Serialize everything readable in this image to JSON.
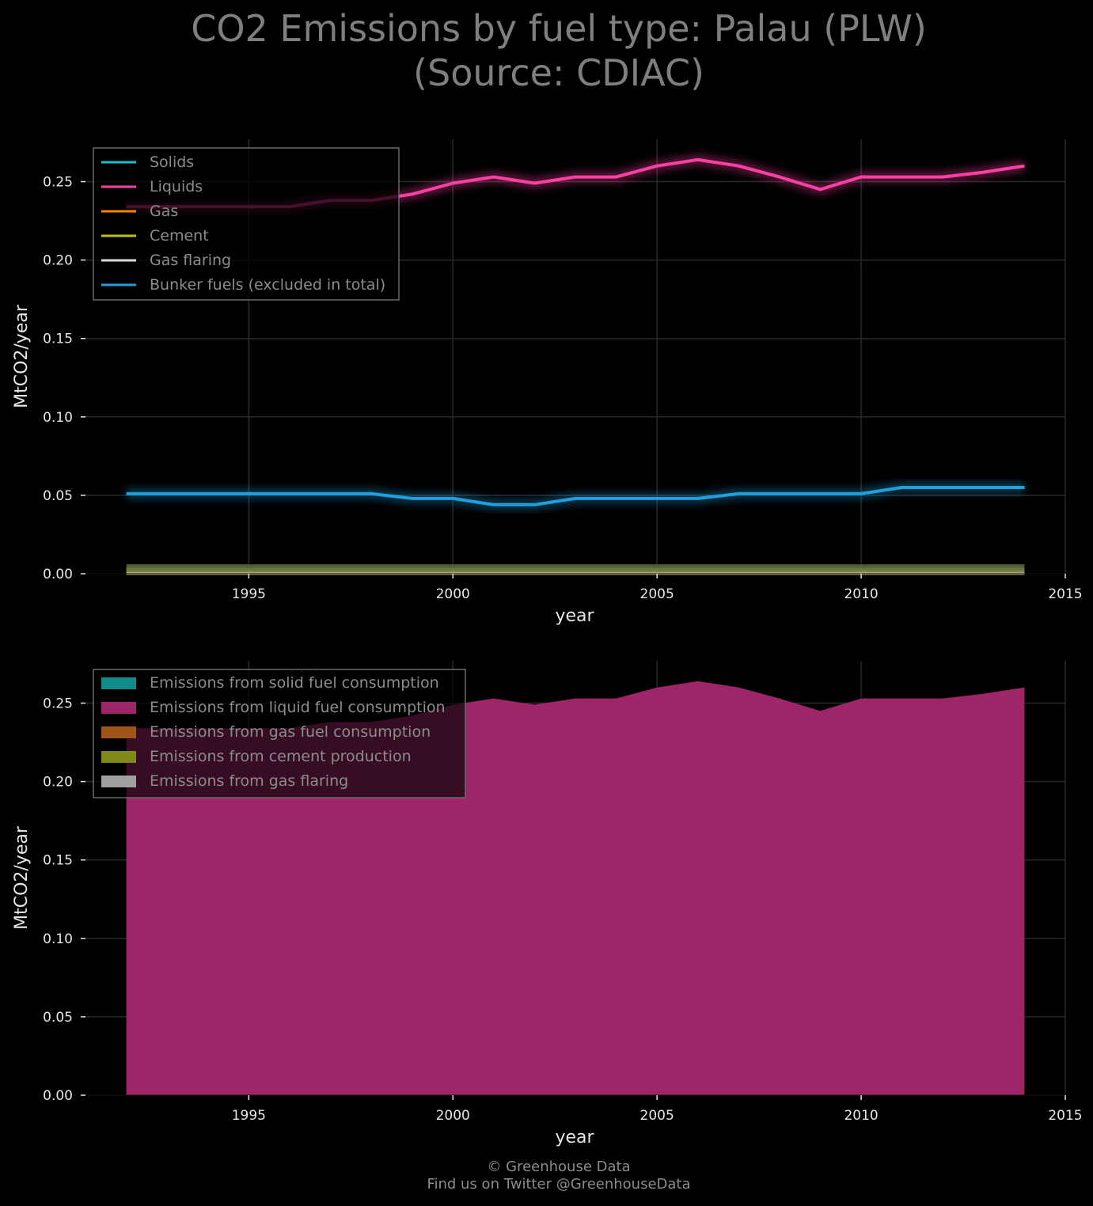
{
  "title": {
    "line1": "CO2 Emissions by fuel type: Palau (PLW)",
    "line2": "(Source: CDIAC)"
  },
  "footer": {
    "line1": "© Greenhouse Data",
    "line2": "Find us on Twitter @GreenhouseData"
  },
  "colors": {
    "background": "#000000",
    "grid": "#2a2a2a",
    "tick_text": "#e6e6e6",
    "legend_text": "#8c8c8c",
    "solids": "#17becf",
    "liquids": "#ff3fa4",
    "gas": "#ff7f0e",
    "cement": "#bcbd22",
    "gas_flaring": "#d9d9d9",
    "bunker": "#1f9fdf",
    "area_liquid": "#9e2668",
    "area_solid": "#118c8c",
    "area_gas": "#a0561a",
    "area_cement": "#7f8a18",
    "area_flaring": "#a0a0a0"
  },
  "chart_data": [
    {
      "type": "line",
      "xlabel": "year",
      "ylabel": "MtCO2/year",
      "xlim": [
        1991,
        2015
      ],
      "ylim": [
        0,
        0.277
      ],
      "xticks": [
        1995,
        2000,
        2005,
        2010,
        2015
      ],
      "xtick_labels": [
        "1995",
        "2000",
        "2005",
        "2010",
        "2015"
      ],
      "yticks": [
        0,
        0.05,
        0.1,
        0.15,
        0.2,
        0.25
      ],
      "ytick_labels": [
        "0.00",
        "0.05",
        "0.10",
        "0.15",
        "0.20",
        "0.25"
      ],
      "grid": true,
      "legend_position": "top-left",
      "x": [
        1992,
        1993,
        1994,
        1995,
        1996,
        1997,
        1998,
        1999,
        2000,
        2001,
        2002,
        2003,
        2004,
        2005,
        2006,
        2007,
        2008,
        2009,
        2010,
        2011,
        2012,
        2013,
        2014
      ],
      "series": [
        {
          "name": "Solids",
          "color_key": "solids",
          "values": [
            0,
            0,
            0,
            0,
            0,
            0,
            0,
            0,
            0,
            0,
            0,
            0,
            0,
            0,
            0,
            0,
            0,
            0,
            0,
            0,
            0,
            0,
            0
          ]
        },
        {
          "name": "Liquids",
          "color_key": "liquids",
          "values": [
            0.234,
            0.234,
            0.234,
            0.234,
            0.234,
            0.238,
            0.238,
            0.242,
            0.249,
            0.253,
            0.249,
            0.253,
            0.253,
            0.26,
            0.264,
            0.26,
            0.253,
            0.245,
            0.253,
            0.253,
            0.253,
            0.256,
            0.26
          ]
        },
        {
          "name": "Gas",
          "color_key": "gas",
          "values": [
            0,
            0,
            0,
            0,
            0,
            0,
            0,
            0,
            0,
            0,
            0,
            0,
            0,
            0,
            0,
            0,
            0,
            0,
            0,
            0,
            0,
            0,
            0
          ]
        },
        {
          "name": "Cement",
          "color_key": "cement",
          "values": [
            0,
            0,
            0,
            0,
            0,
            0,
            0,
            0,
            0,
            0,
            0,
            0,
            0,
            0,
            0,
            0,
            0,
            0,
            0,
            0,
            0,
            0,
            0
          ]
        },
        {
          "name": "Gas flaring",
          "color_key": "gas_flaring",
          "values": [
            0,
            0,
            0,
            0,
            0,
            0,
            0,
            0,
            0,
            0,
            0,
            0,
            0,
            0,
            0,
            0,
            0,
            0,
            0,
            0,
            0,
            0,
            0
          ]
        },
        {
          "name": "Bunker fuels (excluded in total)",
          "color_key": "bunker",
          "values": [
            0.051,
            0.051,
            0.051,
            0.051,
            0.051,
            0.051,
            0.051,
            0.048,
            0.048,
            0.044,
            0.044,
            0.048,
            0.048,
            0.048,
            0.048,
            0.051,
            0.051,
            0.051,
            0.051,
            0.055,
            0.055,
            0.055,
            0.055
          ]
        }
      ]
    },
    {
      "type": "area",
      "xlabel": "year",
      "ylabel": "MtCO2/year",
      "xlim": [
        1991,
        2015
      ],
      "ylim": [
        0,
        0.277
      ],
      "xticks": [
        1995,
        2000,
        2005,
        2010,
        2015
      ],
      "xtick_labels": [
        "1995",
        "2000",
        "2005",
        "2010",
        "2015"
      ],
      "yticks": [
        0,
        0.05,
        0.1,
        0.15,
        0.2,
        0.25
      ],
      "ytick_labels": [
        "0.00",
        "0.05",
        "0.10",
        "0.15",
        "0.20",
        "0.25"
      ],
      "grid": true,
      "stacked": true,
      "legend_position": "top-left",
      "x": [
        1992,
        1993,
        1994,
        1995,
        1996,
        1997,
        1998,
        1999,
        2000,
        2001,
        2002,
        2003,
        2004,
        2005,
        2006,
        2007,
        2008,
        2009,
        2010,
        2011,
        2012,
        2013,
        2014
      ],
      "series": [
        {
          "name": "Emissions from solid fuel consumption",
          "color_key": "area_solid",
          "values": [
            0,
            0,
            0,
            0,
            0,
            0,
            0,
            0,
            0,
            0,
            0,
            0,
            0,
            0,
            0,
            0,
            0,
            0,
            0,
            0,
            0,
            0,
            0
          ]
        },
        {
          "name": "Emissions from liquid fuel consumption",
          "color_key": "area_liquid",
          "values": [
            0.234,
            0.234,
            0.234,
            0.234,
            0.234,
            0.238,
            0.238,
            0.242,
            0.249,
            0.253,
            0.249,
            0.253,
            0.253,
            0.26,
            0.264,
            0.26,
            0.253,
            0.245,
            0.253,
            0.253,
            0.253,
            0.256,
            0.26
          ]
        },
        {
          "name": "Emissions from gas fuel consumption",
          "color_key": "area_gas",
          "values": [
            0,
            0,
            0,
            0,
            0,
            0,
            0,
            0,
            0,
            0,
            0,
            0,
            0,
            0,
            0,
            0,
            0,
            0,
            0,
            0,
            0,
            0,
            0
          ]
        },
        {
          "name": "Emissions from cement production",
          "color_key": "area_cement",
          "values": [
            0,
            0,
            0,
            0,
            0,
            0,
            0,
            0,
            0,
            0,
            0,
            0,
            0,
            0,
            0,
            0,
            0,
            0,
            0,
            0,
            0,
            0,
            0
          ]
        },
        {
          "name": "Emissions from gas flaring",
          "color_key": "area_flaring",
          "values": [
            0,
            0,
            0,
            0,
            0,
            0,
            0,
            0,
            0,
            0,
            0,
            0,
            0,
            0,
            0,
            0,
            0,
            0,
            0,
            0,
            0,
            0,
            0
          ]
        }
      ]
    }
  ]
}
